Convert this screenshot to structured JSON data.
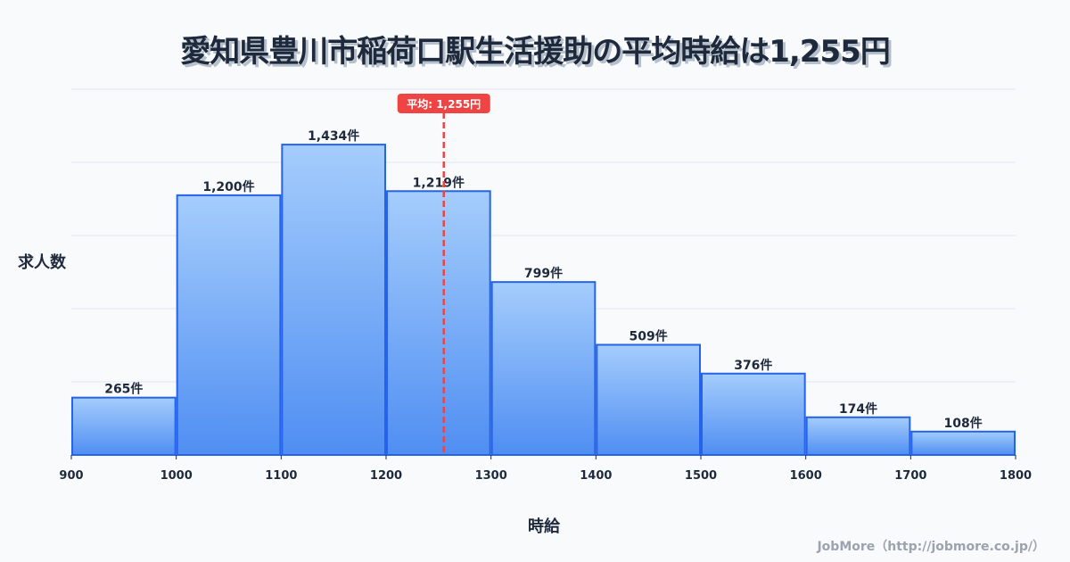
{
  "title": "愛知県豊川市稲荷口駅生活援助の平均時給は1,255円",
  "credit": "JobMore（http://jobmore.co.jp/）",
  "chart_data": {
    "type": "bar",
    "title": "愛知県豊川市稲荷口駅生活援助の平均時給は1,255円",
    "xlabel": "時給",
    "ylabel": "求人数",
    "bin_edges": [
      900,
      1000,
      1100,
      1200,
      1300,
      1400,
      1500,
      1600,
      1700,
      1800
    ],
    "x_ticks": [
      "900",
      "1000",
      "1100",
      "1200",
      "1300",
      "1400",
      "1500",
      "1600",
      "1700",
      "1800"
    ],
    "values": [
      265,
      1200,
      1434,
      1219,
      799,
      509,
      376,
      174,
      108
    ],
    "data_labels": [
      "265件",
      "1,200件",
      "1,434件",
      "1,219件",
      "799件",
      "509件",
      "376件",
      "174件",
      "108件"
    ],
    "xlim": [
      900,
      1800
    ],
    "ylim": [
      0,
      1690
    ],
    "grid": true,
    "mean": {
      "value": 1255,
      "label": "平均: 1,255円"
    },
    "colors": {
      "bar_top": "#a5cdfc",
      "bar_bottom": "#4f8ef2",
      "bar_stroke": "#2563eb",
      "mean": "#ef4444"
    }
  }
}
